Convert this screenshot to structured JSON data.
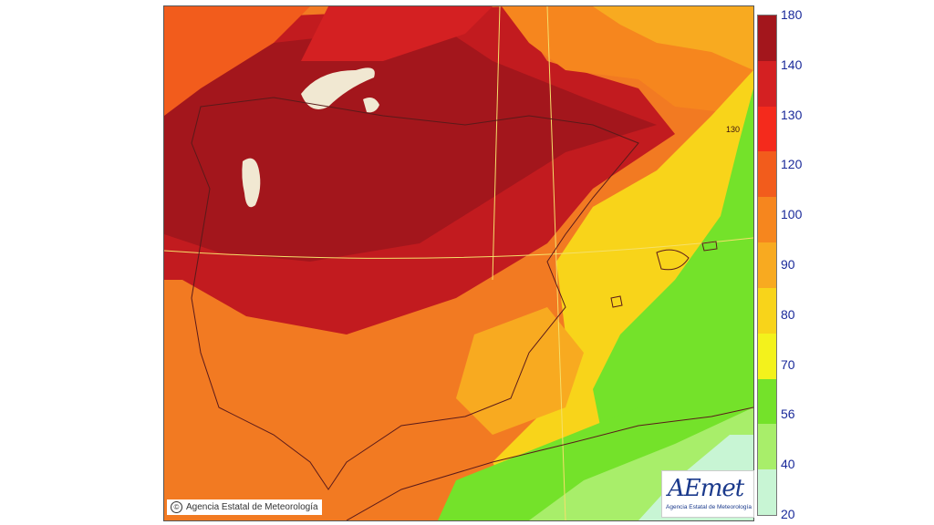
{
  "legend": {
    "labels": [
      "180",
      "140",
      "130",
      "120",
      "100",
      "90",
      "80",
      "70",
      "56",
      "40",
      "20"
    ],
    "colors": [
      "#a3161c",
      "#d42022",
      "#f42a1c",
      "#f25c1c",
      "#f6861e",
      "#f8aa20",
      "#f8d41a",
      "#f3f21c",
      "#74e22a",
      "#a8ee6a",
      "#c8f5d4"
    ]
  },
  "copyright": {
    "text": "Agencia Estatal de Meteorología",
    "icon": "copyright-icon"
  },
  "logo": {
    "name": "AEmet",
    "subtitle": "Agencia Estatal de Meteorología"
  },
  "map": {
    "label": "130"
  }
}
